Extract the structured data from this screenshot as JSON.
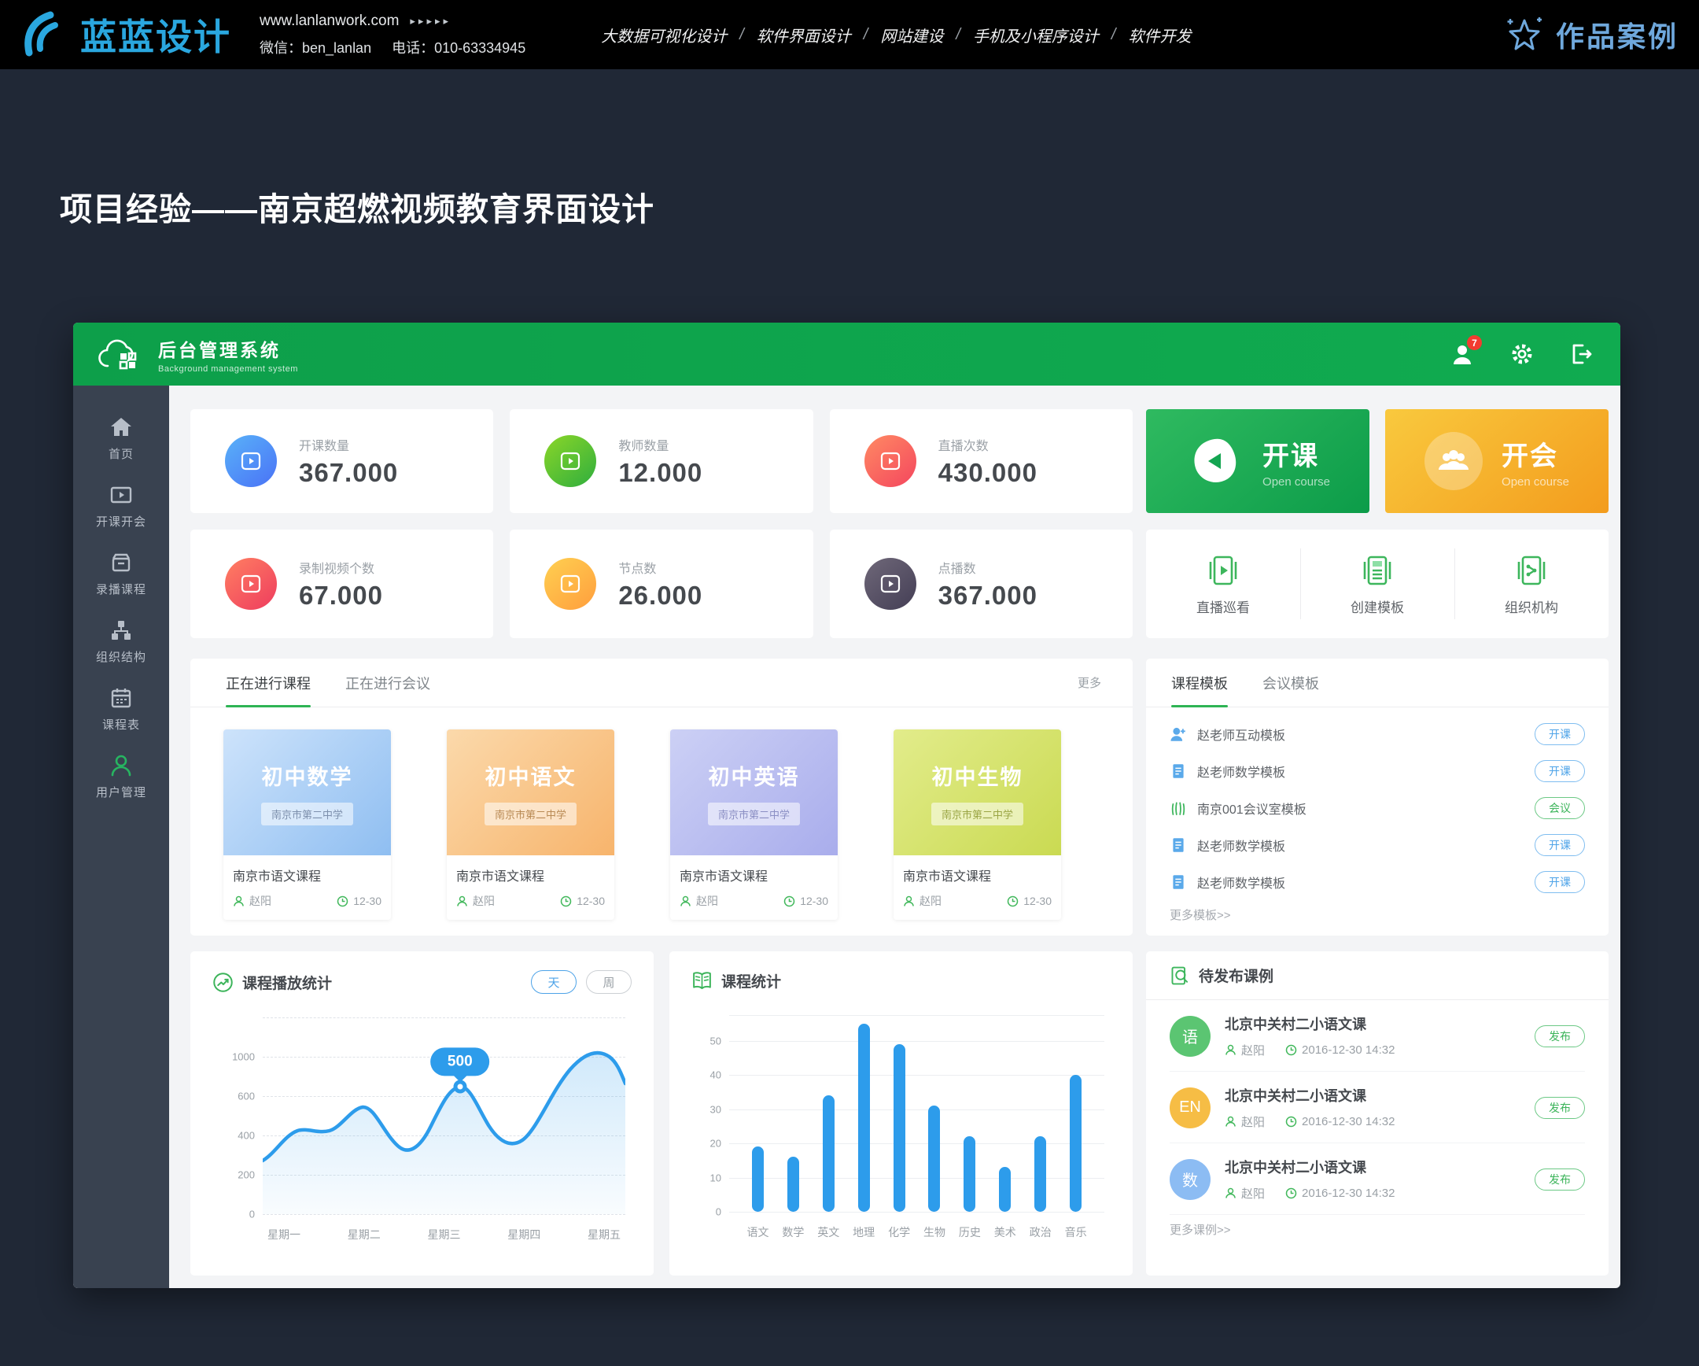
{
  "site_header": {
    "logo": "蓝蓝设计",
    "website": "www.lanlanwork.com",
    "arrows": "▸▸▸▸▸",
    "wechat_label": "微信：ben_lanlan",
    "phone_label": "电话：010-63334945",
    "nav": [
      "大数据可视化设计",
      "软件界面设计",
      "网站建设",
      "手机及小程序设计",
      "软件开发"
    ],
    "nav_sep": "/",
    "portfolio": "作品案例"
  },
  "page_title": "项目经验——南京超燃视频教育界面设计",
  "dashboard": {
    "header": {
      "title": "后台管理系统",
      "subtitle": "Background management system",
      "notification_count": "7"
    },
    "sidebar": [
      {
        "label": "首页",
        "icon": "home"
      },
      {
        "label": "开课开会",
        "icon": "video-screen"
      },
      {
        "label": "录播课程",
        "icon": "archive"
      },
      {
        "label": "组织结构",
        "icon": "org-chart"
      },
      {
        "label": "课程表",
        "icon": "calendar"
      },
      {
        "label": "用户管理",
        "icon": "user",
        "active": true
      }
    ],
    "stats": [
      {
        "label": "开课数量",
        "value": "367.000",
        "icon_gradient": [
          "#59b2f9",
          "#4a72f6"
        ]
      },
      {
        "label": "教师数量",
        "value": "12.000",
        "icon_gradient": [
          "#8bd628",
          "#2fae3e"
        ]
      },
      {
        "label": "直播次数",
        "value": "430.000",
        "icon_gradient": [
          "#ff8a63",
          "#f4465e"
        ]
      },
      {
        "label": "录制视频个数",
        "value": "67.000",
        "icon_gradient": [
          "#ff7f62",
          "#ee3c5e"
        ]
      },
      {
        "label": "节点数",
        "value": "26.000",
        "icon_gradient": [
          "#ffd051",
          "#ff9e3d"
        ]
      },
      {
        "label": "点播数",
        "value": "367.000",
        "icon_gradient": [
          "#6f6879",
          "#443e55"
        ]
      }
    ],
    "action_buttons": [
      {
        "title": "开课",
        "subtitle": "Open course",
        "gradient": [
          "#2fba60",
          "#0c9c49"
        ]
      },
      {
        "title": "开会",
        "subtitle": "Open course",
        "gradient": [
          "#f9c93e",
          "#f39c1d"
        ]
      }
    ],
    "quick_links": [
      {
        "label": "直播巡看",
        "icon": "live-view"
      },
      {
        "label": "创建模板",
        "icon": "create-template"
      },
      {
        "label": "组织机构",
        "icon": "organization"
      }
    ],
    "courses_panel": {
      "tabs": [
        {
          "label": "正在进行课程"
        },
        {
          "label": "正在进行会议"
        }
      ],
      "more": "更多",
      "cards": [
        {
          "subject": "初中数学",
          "school": "南京市第二中学",
          "course_name": "南京市语文课程",
          "teacher": "赵阳",
          "time": "12-30",
          "gradient": [
            "#cde3fb",
            "#8fbef1"
          ],
          "badge_text": "#7d90ad"
        },
        {
          "subject": "初中语文",
          "school": "南京市第二中学",
          "course_name": "南京市语文课程",
          "teacher": "赵阳",
          "time": "12-30",
          "gradient": [
            "#fbd9ab",
            "#f7b46c"
          ],
          "badge_text": "#b98a54"
        },
        {
          "subject": "初中英语",
          "school": "南京市第二中学",
          "course_name": "南京市语文课程",
          "teacher": "赵阳",
          "time": "12-30",
          "gradient": [
            "#ccd0f5",
            "#a9adec"
          ],
          "badge_text": "#8b8fc4"
        },
        {
          "subject": "初中生物",
          "school": "南京市第二中学",
          "course_name": "南京市语文课程",
          "teacher": "赵阳",
          "time": "12-30",
          "gradient": [
            "#e2ec8b",
            "#cada52"
          ],
          "badge_text": "#9aa544"
        }
      ]
    },
    "templates_panel": {
      "tabs": [
        {
          "label": "课程模板"
        },
        {
          "label": "会议模板"
        }
      ],
      "items": [
        {
          "name": "赵老师互动模板",
          "action": "开课",
          "type": "course",
          "icon": "person-add"
        },
        {
          "name": "赵老师数学模板",
          "action": "开课",
          "type": "course",
          "icon": "document"
        },
        {
          "name": "南京001会议室模板",
          "action": "会议",
          "type": "meeting",
          "icon": "meeting"
        },
        {
          "name": "赵老师数学模板",
          "action": "开课",
          "type": "course",
          "icon": "document"
        },
        {
          "name": "赵老师数学模板",
          "action": "开课",
          "type": "course",
          "icon": "document"
        }
      ],
      "more": "更多模板>>"
    },
    "play_stats_panel": {
      "title": "课程播放统计",
      "toggles": [
        {
          "label": "天",
          "active": true
        },
        {
          "label": "周",
          "active": false
        }
      ]
    },
    "course_stats_panel": {
      "title": "课程统计"
    },
    "publish_panel": {
      "title": "待发布课例",
      "items": [
        {
          "avatar": "语",
          "avatar_color": "#5bc572",
          "title": "北京中关村二小语文课",
          "teacher": "赵阳",
          "datetime": "2016-12-30  14:32",
          "action": "发布"
        },
        {
          "avatar": "EN",
          "avatar_color": "#f6bd45",
          "title": "北京中关村二小语文课",
          "teacher": "赵阳",
          "datetime": "2016-12-30  14:32",
          "action": "发布"
        },
        {
          "avatar": "数",
          "avatar_color": "#8cbcf3",
          "title": "北京中关村二小语文课",
          "teacher": "赵阳",
          "datetime": "2016-12-30  14:32",
          "action": "发布"
        }
      ],
      "more": "更多课例>>"
    },
    "colors": {
      "primary_green": "#0ea84e",
      "accent_blue": "#4da3e8",
      "chart_blue": "#2d9ceb",
      "badge_red": "#f23b30",
      "sidebar_bg": "#394250"
    }
  },
  "chart_data": [
    {
      "type": "area",
      "title": "课程播放统计",
      "x": [
        "星期一",
        "星期二",
        "星期三",
        "星期四",
        "星期五"
      ],
      "series": [
        {
          "name": "课程播放量",
          "values": [
            420,
            510,
            500,
            470,
            800
          ]
        }
      ],
      "annotated_point": {
        "x": "星期三",
        "value": 500
      },
      "y_ticks": [
        1000,
        600,
        400,
        200,
        0
      ],
      "ylim": [
        0,
        1200
      ],
      "grid": "dashed-horizontal",
      "legend": "none",
      "color": "#2d9ceb"
    },
    {
      "type": "bar",
      "title": "课程统计",
      "categories": [
        "语文",
        "数学",
        "英文",
        "地理",
        "化学",
        "生物",
        "历史",
        "美术",
        "政治",
        "音乐"
      ],
      "values": [
        19,
        16,
        34,
        55,
        49,
        31,
        22,
        13,
        22,
        40
      ],
      "y_ticks": [
        0,
        10,
        20,
        30,
        40,
        50
      ],
      "ylim": [
        0,
        57.5
      ],
      "grid": "solid-horizontal",
      "legend": "none",
      "bar_color": "#2d9ceb"
    }
  ]
}
